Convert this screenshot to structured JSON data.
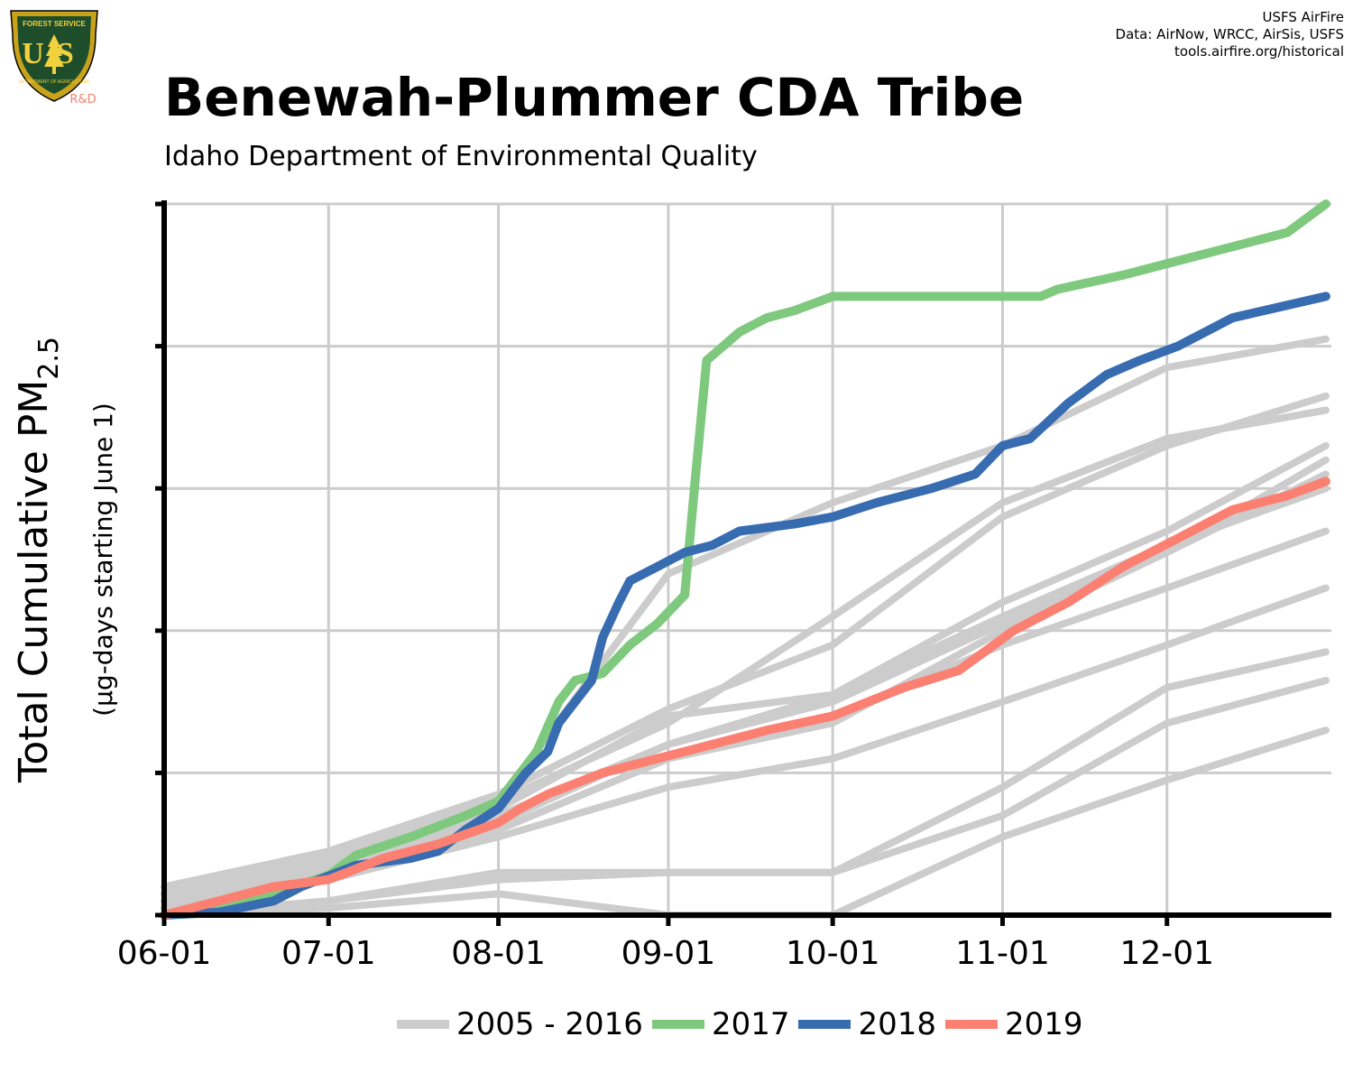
{
  "header": {
    "title": "Benewah-Plummer CDA Tribe",
    "subtitle": "Idaho Department of Environmental Quality"
  },
  "credits": {
    "line1": "USFS AirFire",
    "line2": "Data: AirNow, WRCC, AirSis, USFS",
    "line3": "tools.airfire.org/historical"
  },
  "logo": {
    "icon": "usfs-shield-icon",
    "top_text": "FOREST SERVICE",
    "letters": "US",
    "bottom_text": "DEPARTMENT OF AGRICULTURE",
    "badge": "R&D",
    "colors": {
      "shield": "#1d4d2b",
      "border": "#c9a21b",
      "text": "#f2d13e",
      "badge": "#f08270"
    }
  },
  "colors": {
    "grid": "#cccccc",
    "historical": "#cccccc",
    "y2017": "#7fc97f",
    "y2018": "#386cb0",
    "y2019": "#fb8072"
  },
  "chart_data": {
    "type": "line",
    "title": "Benewah-Plummer CDA Tribe",
    "subtitle": "Idaho Department of Environmental Quality",
    "xlabel": "",
    "ylabel": "Total Cumulative PM",
    "ylabel_subscript": "2.5",
    "ylabel_units": "(µg-days starting June 1)",
    "x_tick_labels": [
      "06-01",
      "07-01",
      "08-01",
      "09-01",
      "10-01",
      "11-01",
      "12-01"
    ],
    "x_tick_days": [
      0,
      30,
      61,
      92,
      122,
      153,
      183
    ],
    "xlim": [
      0,
      213
    ],
    "ylim": [
      0,
      5
    ],
    "y_tick_values": [
      0,
      1,
      2,
      3,
      4,
      5
    ],
    "y_tick_labels_shown": false,
    "grid": true,
    "legend_position": "bottom",
    "legend": [
      "2005 - 2016",
      "2017",
      "2018",
      "2019"
    ],
    "series": [
      {
        "name": "2017",
        "color": "#7fc97f",
        "points": [
          [
            0,
            0
          ],
          [
            10,
            0.05
          ],
          [
            20,
            0.15
          ],
          [
            30,
            0.28
          ],
          [
            35,
            0.42
          ],
          [
            45,
            0.55
          ],
          [
            55,
            0.7
          ],
          [
            61,
            0.8
          ],
          [
            65,
            1.0
          ],
          [
            68,
            1.15
          ],
          [
            72,
            1.5
          ],
          [
            75,
            1.65
          ],
          [
            80,
            1.7
          ],
          [
            85,
            1.9
          ],
          [
            90,
            2.05
          ],
          [
            95,
            2.25
          ],
          [
            97,
            3.1
          ],
          [
            99,
            3.9
          ],
          [
            102,
            4.0
          ],
          [
            105,
            4.1
          ],
          [
            110,
            4.2
          ],
          [
            115,
            4.25
          ],
          [
            122,
            4.35
          ],
          [
            135,
            4.35
          ],
          [
            160,
            4.35
          ],
          [
            163,
            4.4
          ],
          [
            175,
            4.5
          ],
          [
            185,
            4.6
          ],
          [
            195,
            4.7
          ],
          [
            205,
            4.8
          ],
          [
            212,
            5.0
          ]
        ]
      },
      {
        "name": "2018",
        "color": "#386cb0",
        "points": [
          [
            0,
            0
          ],
          [
            10,
            0.02
          ],
          [
            20,
            0.1
          ],
          [
            25,
            0.2
          ],
          [
            35,
            0.35
          ],
          [
            45,
            0.4
          ],
          [
            50,
            0.45
          ],
          [
            55,
            0.6
          ],
          [
            61,
            0.75
          ],
          [
            66,
            1.0
          ],
          [
            70,
            1.15
          ],
          [
            72,
            1.35
          ],
          [
            76,
            1.55
          ],
          [
            78,
            1.65
          ],
          [
            80,
            1.95
          ],
          [
            83,
            2.2
          ],
          [
            85,
            2.35
          ],
          [
            90,
            2.45
          ],
          [
            95,
            2.55
          ],
          [
            100,
            2.6
          ],
          [
            105,
            2.7
          ],
          [
            115,
            2.75
          ],
          [
            122,
            2.8
          ],
          [
            130,
            2.9
          ],
          [
            140,
            3.0
          ],
          [
            148,
            3.1
          ],
          [
            153,
            3.3
          ],
          [
            158,
            3.35
          ],
          [
            165,
            3.6
          ],
          [
            172,
            3.8
          ],
          [
            178,
            3.9
          ],
          [
            185,
            4.0
          ],
          [
            195,
            4.2
          ],
          [
            212,
            4.35
          ]
        ]
      },
      {
        "name": "2019",
        "color": "#fb8072",
        "points": [
          [
            0,
            0
          ],
          [
            10,
            0.1
          ],
          [
            20,
            0.2
          ],
          [
            30,
            0.25
          ],
          [
            40,
            0.4
          ],
          [
            50,
            0.5
          ],
          [
            61,
            0.65
          ],
          [
            65,
            0.75
          ],
          [
            70,
            0.85
          ],
          [
            80,
            1.0
          ],
          [
            90,
            1.1
          ],
          [
            100,
            1.2
          ],
          [
            110,
            1.3
          ],
          [
            122,
            1.4
          ],
          [
            135,
            1.6
          ],
          [
            145,
            1.72
          ],
          [
            155,
            2.0
          ],
          [
            165,
            2.2
          ],
          [
            175,
            2.45
          ],
          [
            185,
            2.65
          ],
          [
            195,
            2.85
          ],
          [
            205,
            2.95
          ],
          [
            212,
            3.05
          ]
        ]
      },
      {
        "name": "2005 - 2016",
        "color": "#cccccc",
        "points": [
          [
            0,
            0
          ],
          [
            30,
            0.25
          ],
          [
            61,
            0.55
          ],
          [
            92,
            0.9
          ],
          [
            122,
            1.1
          ],
          [
            153,
            1.5
          ],
          [
            183,
            1.9
          ],
          [
            212,
            2.3
          ]
        ]
      },
      {
        "name": "2005 - 2016",
        "color": "#cccccc",
        "points": [
          [
            0,
            0
          ],
          [
            30,
            0.3
          ],
          [
            61,
            0.6
          ],
          [
            92,
            1.1
          ],
          [
            122,
            1.4
          ],
          [
            153,
            1.9
          ],
          [
            183,
            2.3
          ],
          [
            212,
            2.7
          ]
        ]
      },
      {
        "name": "2005 - 2016",
        "color": "#cccccc",
        "points": [
          [
            0,
            0
          ],
          [
            30,
            0.3
          ],
          [
            61,
            0.65
          ],
          [
            92,
            1.2
          ],
          [
            122,
            1.55
          ],
          [
            153,
            2.1
          ],
          [
            183,
            2.6
          ],
          [
            212,
            3.0
          ]
        ]
      },
      {
        "name": "2005 - 2016",
        "color": "#cccccc",
        "points": [
          [
            0,
            0.05
          ],
          [
            30,
            0.3
          ],
          [
            61,
            0.7
          ],
          [
            92,
            1.2
          ],
          [
            122,
            1.5
          ],
          [
            153,
            2.05
          ],
          [
            183,
            2.55
          ],
          [
            212,
            3.1
          ]
        ]
      },
      {
        "name": "2005 - 2016",
        "color": "#cccccc",
        "points": [
          [
            0,
            0
          ],
          [
            30,
            0.3
          ],
          [
            61,
            0.6
          ],
          [
            92,
            1.1
          ],
          [
            122,
            1.35
          ],
          [
            153,
            2.0
          ],
          [
            183,
            2.55
          ],
          [
            212,
            3.2
          ]
        ]
      },
      {
        "name": "2005 - 2016",
        "color": "#cccccc",
        "points": [
          [
            0,
            0.1
          ],
          [
            30,
            0.35
          ],
          [
            61,
            0.75
          ],
          [
            92,
            1.4
          ],
          [
            122,
            1.55
          ],
          [
            153,
            2.2
          ],
          [
            183,
            2.7
          ],
          [
            212,
            3.3
          ]
        ]
      },
      {
        "name": "2005 - 2016",
        "color": "#cccccc",
        "points": [
          [
            0,
            0.1
          ],
          [
            30,
            0.4
          ],
          [
            61,
            0.8
          ],
          [
            92,
            1.35
          ],
          [
            122,
            2.1
          ],
          [
            153,
            2.9
          ],
          [
            183,
            3.35
          ],
          [
            212,
            3.55
          ]
        ]
      },
      {
        "name": "2005 - 2016",
        "color": "#cccccc",
        "points": [
          [
            0,
            0.2
          ],
          [
            30,
            0.45
          ],
          [
            61,
            0.85
          ],
          [
            92,
            1.45
          ],
          [
            122,
            1.9
          ],
          [
            153,
            2.8
          ],
          [
            183,
            3.3
          ],
          [
            212,
            3.65
          ]
        ]
      },
      {
        "name": "2005 - 2016",
        "color": "#cccccc",
        "points": [
          [
            0,
            0.15
          ],
          [
            30,
            0.4
          ],
          [
            61,
            0.8
          ],
          [
            92,
            2.4
          ],
          [
            122,
            2.9
          ],
          [
            153,
            3.3
          ],
          [
            183,
            3.85
          ],
          [
            212,
            4.05
          ]
        ]
      },
      {
        "name": "2005 - 2016",
        "color": "#cccccc",
        "points": [
          [
            0,
            0
          ],
          [
            30,
            0.1
          ],
          [
            61,
            0.3
          ],
          [
            92,
            0.3
          ],
          [
            122,
            0.3
          ],
          [
            153,
            0.9
          ],
          [
            183,
            1.6
          ],
          [
            212,
            1.85
          ]
        ]
      },
      {
        "name": "2005 - 2016",
        "color": "#cccccc",
        "points": [
          [
            0,
            0
          ],
          [
            30,
            0.1
          ],
          [
            61,
            0.25
          ],
          [
            92,
            0.3
          ],
          [
            122,
            0.3
          ],
          [
            153,
            0.7
          ],
          [
            183,
            1.35
          ],
          [
            212,
            1.65
          ]
        ]
      },
      {
        "name": "2005 - 2016",
        "color": "#cccccc",
        "points": [
          [
            0,
            0
          ],
          [
            30,
            0.05
          ],
          [
            61,
            0.15
          ],
          [
            92,
            0.0
          ],
          [
            122,
            0.0
          ],
          [
            153,
            0.55
          ],
          [
            183,
            0.95
          ],
          [
            212,
            1.3
          ]
        ]
      }
    ]
  }
}
